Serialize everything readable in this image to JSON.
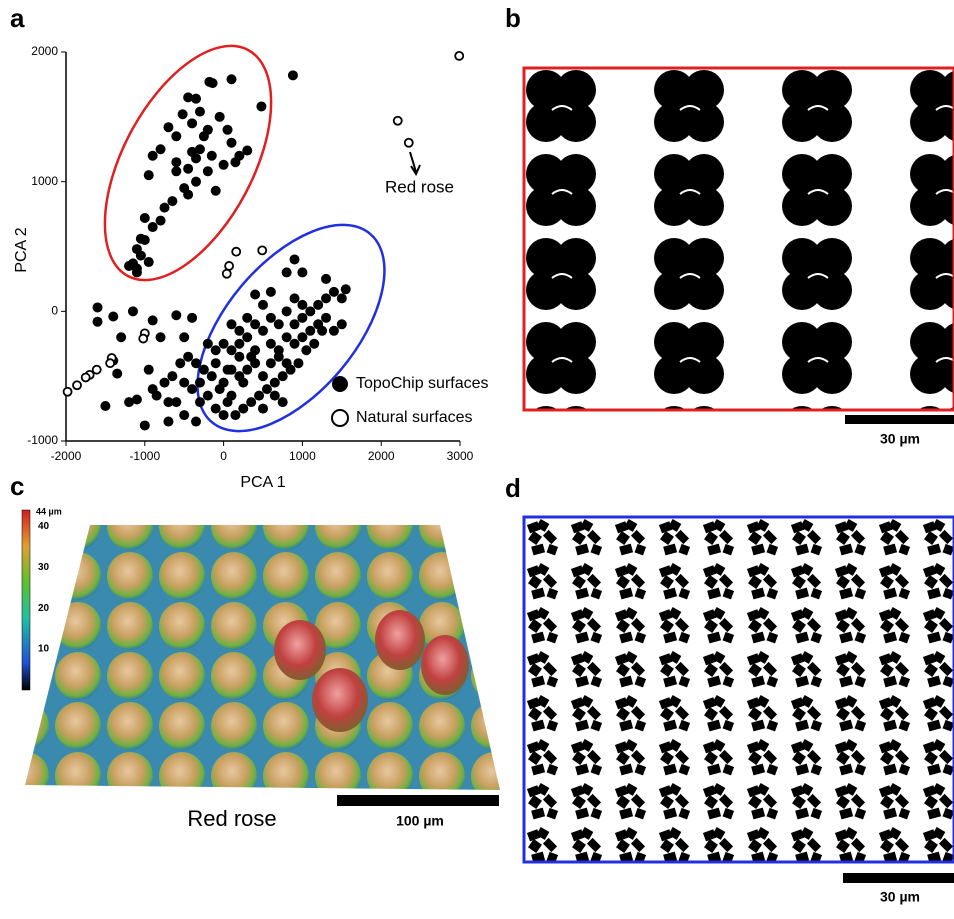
{
  "chart_data": {
    "type": "scatter",
    "xlabel": "PCA 1",
    "ylabel": "PCA 2",
    "xlim": [
      -2000,
      3000
    ],
    "ylim": [
      -1000,
      2000
    ],
    "xticks": [
      -2000,
      -1000,
      0,
      1000,
      2000,
      3000
    ],
    "yticks": [
      -1000,
      0,
      1000,
      2000
    ],
    "annotation": "Red rose",
    "series": [
      {
        "name": "TopoChip surfaces",
        "marker": "filled",
        "color": "#000000",
        "x": [
          880,
          -180,
          -140,
          100,
          480,
          -450,
          -350,
          -520,
          -300,
          -200,
          -50,
          50,
          -400,
          -600,
          -700,
          -250,
          100,
          150,
          300,
          -400,
          -350,
          -450,
          -300,
          -150,
          -800,
          -900,
          -600,
          -950,
          -500,
          -450,
          -100,
          -650,
          -750,
          -800,
          -1000,
          -900,
          -1100,
          -1050,
          -1000,
          -1150,
          -1100,
          -1200,
          -1100,
          -950,
          -1050,
          -600,
          0,
          200,
          -200,
          -350,
          -1600,
          -1600,
          -1400,
          -1300,
          -1150,
          -1400,
          -1350,
          -900,
          -800,
          -600,
          -500,
          -400,
          -1200,
          -1500,
          -1000,
          -900,
          -700,
          -1100,
          200,
          300,
          400,
          500,
          600,
          700,
          800,
          900,
          1000,
          1100,
          1200,
          1300,
          1400,
          1500,
          1550,
          1250,
          1150,
          1050,
          950,
          850,
          750,
          650,
          550,
          450,
          350,
          250,
          150,
          50,
          -50,
          -150,
          -250,
          -350,
          -450,
          -550,
          -650,
          -750,
          -850,
          -950,
          -400,
          -300,
          -200,
          -100,
          0,
          100,
          200,
          300,
          400,
          500,
          600,
          700,
          800,
          900,
          1000,
          1100,
          1200,
          1300,
          1000,
          900,
          800,
          700,
          600,
          500,
          400,
          300,
          200,
          100,
          0,
          -100,
          -200,
          1300,
          1000,
          800,
          600,
          400,
          900,
          1500,
          1400,
          -600,
          -500,
          -350,
          0,
          100,
          500,
          250,
          350,
          650,
          750,
          -500,
          -700,
          100,
          200,
          -100,
          -300,
          50
        ],
        "y": [
          1820,
          1770,
          1760,
          1790,
          1580,
          1650,
          1640,
          1520,
          1540,
          1400,
          1500,
          1400,
          1450,
          1350,
          1420,
          1350,
          1300,
          1150,
          1240,
          1230,
          1180,
          1100,
          1250,
          1200,
          1250,
          1200,
          1150,
          1050,
          950,
          900,
          930,
          850,
          800,
          700,
          720,
          650,
          480,
          560,
          550,
          370,
          330,
          350,
          300,
          380,
          430,
          1080,
          1130,
          1200,
          1080,
          1000,
          30,
          -80,
          -40,
          -200,
          0,
          -380,
          -480,
          -70,
          -200,
          -30,
          -200,
          -50,
          -700,
          -730,
          -880,
          -600,
          -850,
          -680,
          -250,
          -200,
          -300,
          -150,
          -250,
          -350,
          -200,
          -100,
          -50,
          0,
          50,
          100,
          150,
          100,
          170,
          -150,
          -250,
          -300,
          -400,
          -450,
          -500,
          -550,
          -600,
          -650,
          -700,
          -750,
          -800,
          -700,
          -600,
          -500,
          -450,
          -400,
          -350,
          -400,
          -500,
          -550,
          -650,
          -450,
          -600,
          -700,
          -650,
          -750,
          -550,
          -450,
          -350,
          -450,
          -400,
          -500,
          -400,
          -300,
          -400,
          -250,
          -200,
          -150,
          -100,
          -50,
          50,
          100,
          0,
          -100,
          -50,
          50,
          -100,
          -50,
          -150,
          -100,
          -250,
          -300,
          -250,
          250,
          300,
          300,
          150,
          130,
          400,
          -100,
          -150,
          -700,
          -800,
          -850,
          -800,
          -650,
          -750,
          -550,
          -350,
          -650,
          -700,
          -550,
          -700,
          -300,
          -500,
          -400,
          -550,
          -450
        ]
      },
      {
        "name": "Natural surfaces",
        "marker": "open",
        "color": "#000000",
        "x": [
          2990,
          2210,
          2350,
          160,
          490,
          70,
          40,
          -1000,
          -1020,
          -1420,
          -1440,
          -1610,
          -1700,
          -1750,
          -1860,
          -1980
        ],
        "y": [
          1970,
          1470,
          1300,
          460,
          470,
          350,
          290,
          -170,
          -210,
          -360,
          -400,
          -450,
          -490,
          -510,
          -570,
          -620
        ]
      }
    ]
  },
  "panels": {
    "a": "a",
    "b": "b",
    "c": "c",
    "d": "d"
  },
  "panel_b": {
    "scale_bar": "30 µm"
  },
  "panel_c": {
    "colorbar_max": "44 µm",
    "colorbar_ticks": [
      10,
      20,
      30,
      40
    ],
    "caption": "Red rose",
    "scale_bar": "100 µm"
  },
  "panel_d": {
    "scale_bar": "30 µm"
  }
}
